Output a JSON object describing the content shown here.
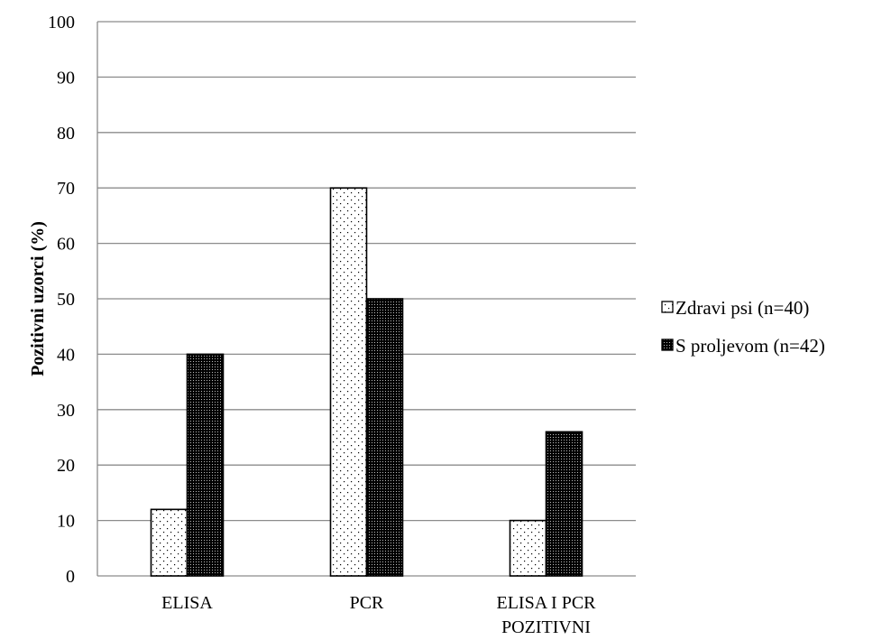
{
  "chart_data": {
    "type": "bar",
    "categories": [
      "ELISA",
      "PCR",
      "ELISA I PCR POZITIVNI"
    ],
    "category_lines": [
      [
        "ELISA"
      ],
      [
        "PCR"
      ],
      [
        "ELISA I PCR",
        "POZITIVNI"
      ]
    ],
    "series": [
      {
        "name": "Zdravi psi (n=40)",
        "values": [
          12,
          70,
          10
        ],
        "pattern": "sparse-dots",
        "color": "#000000"
      },
      {
        "name": "S proljevom (n=42)",
        "values": [
          40,
          50,
          26
        ],
        "pattern": "dense-dots",
        "color": "#000000"
      }
    ],
    "ylabel": "Pozitivni uzorci (%)",
    "xlabel": "",
    "ylim": [
      0,
      100
    ],
    "yticks": [
      0,
      10,
      20,
      30,
      40,
      50,
      60,
      70,
      80,
      90,
      100
    ],
    "grid": true,
    "legend_position": "right"
  }
}
